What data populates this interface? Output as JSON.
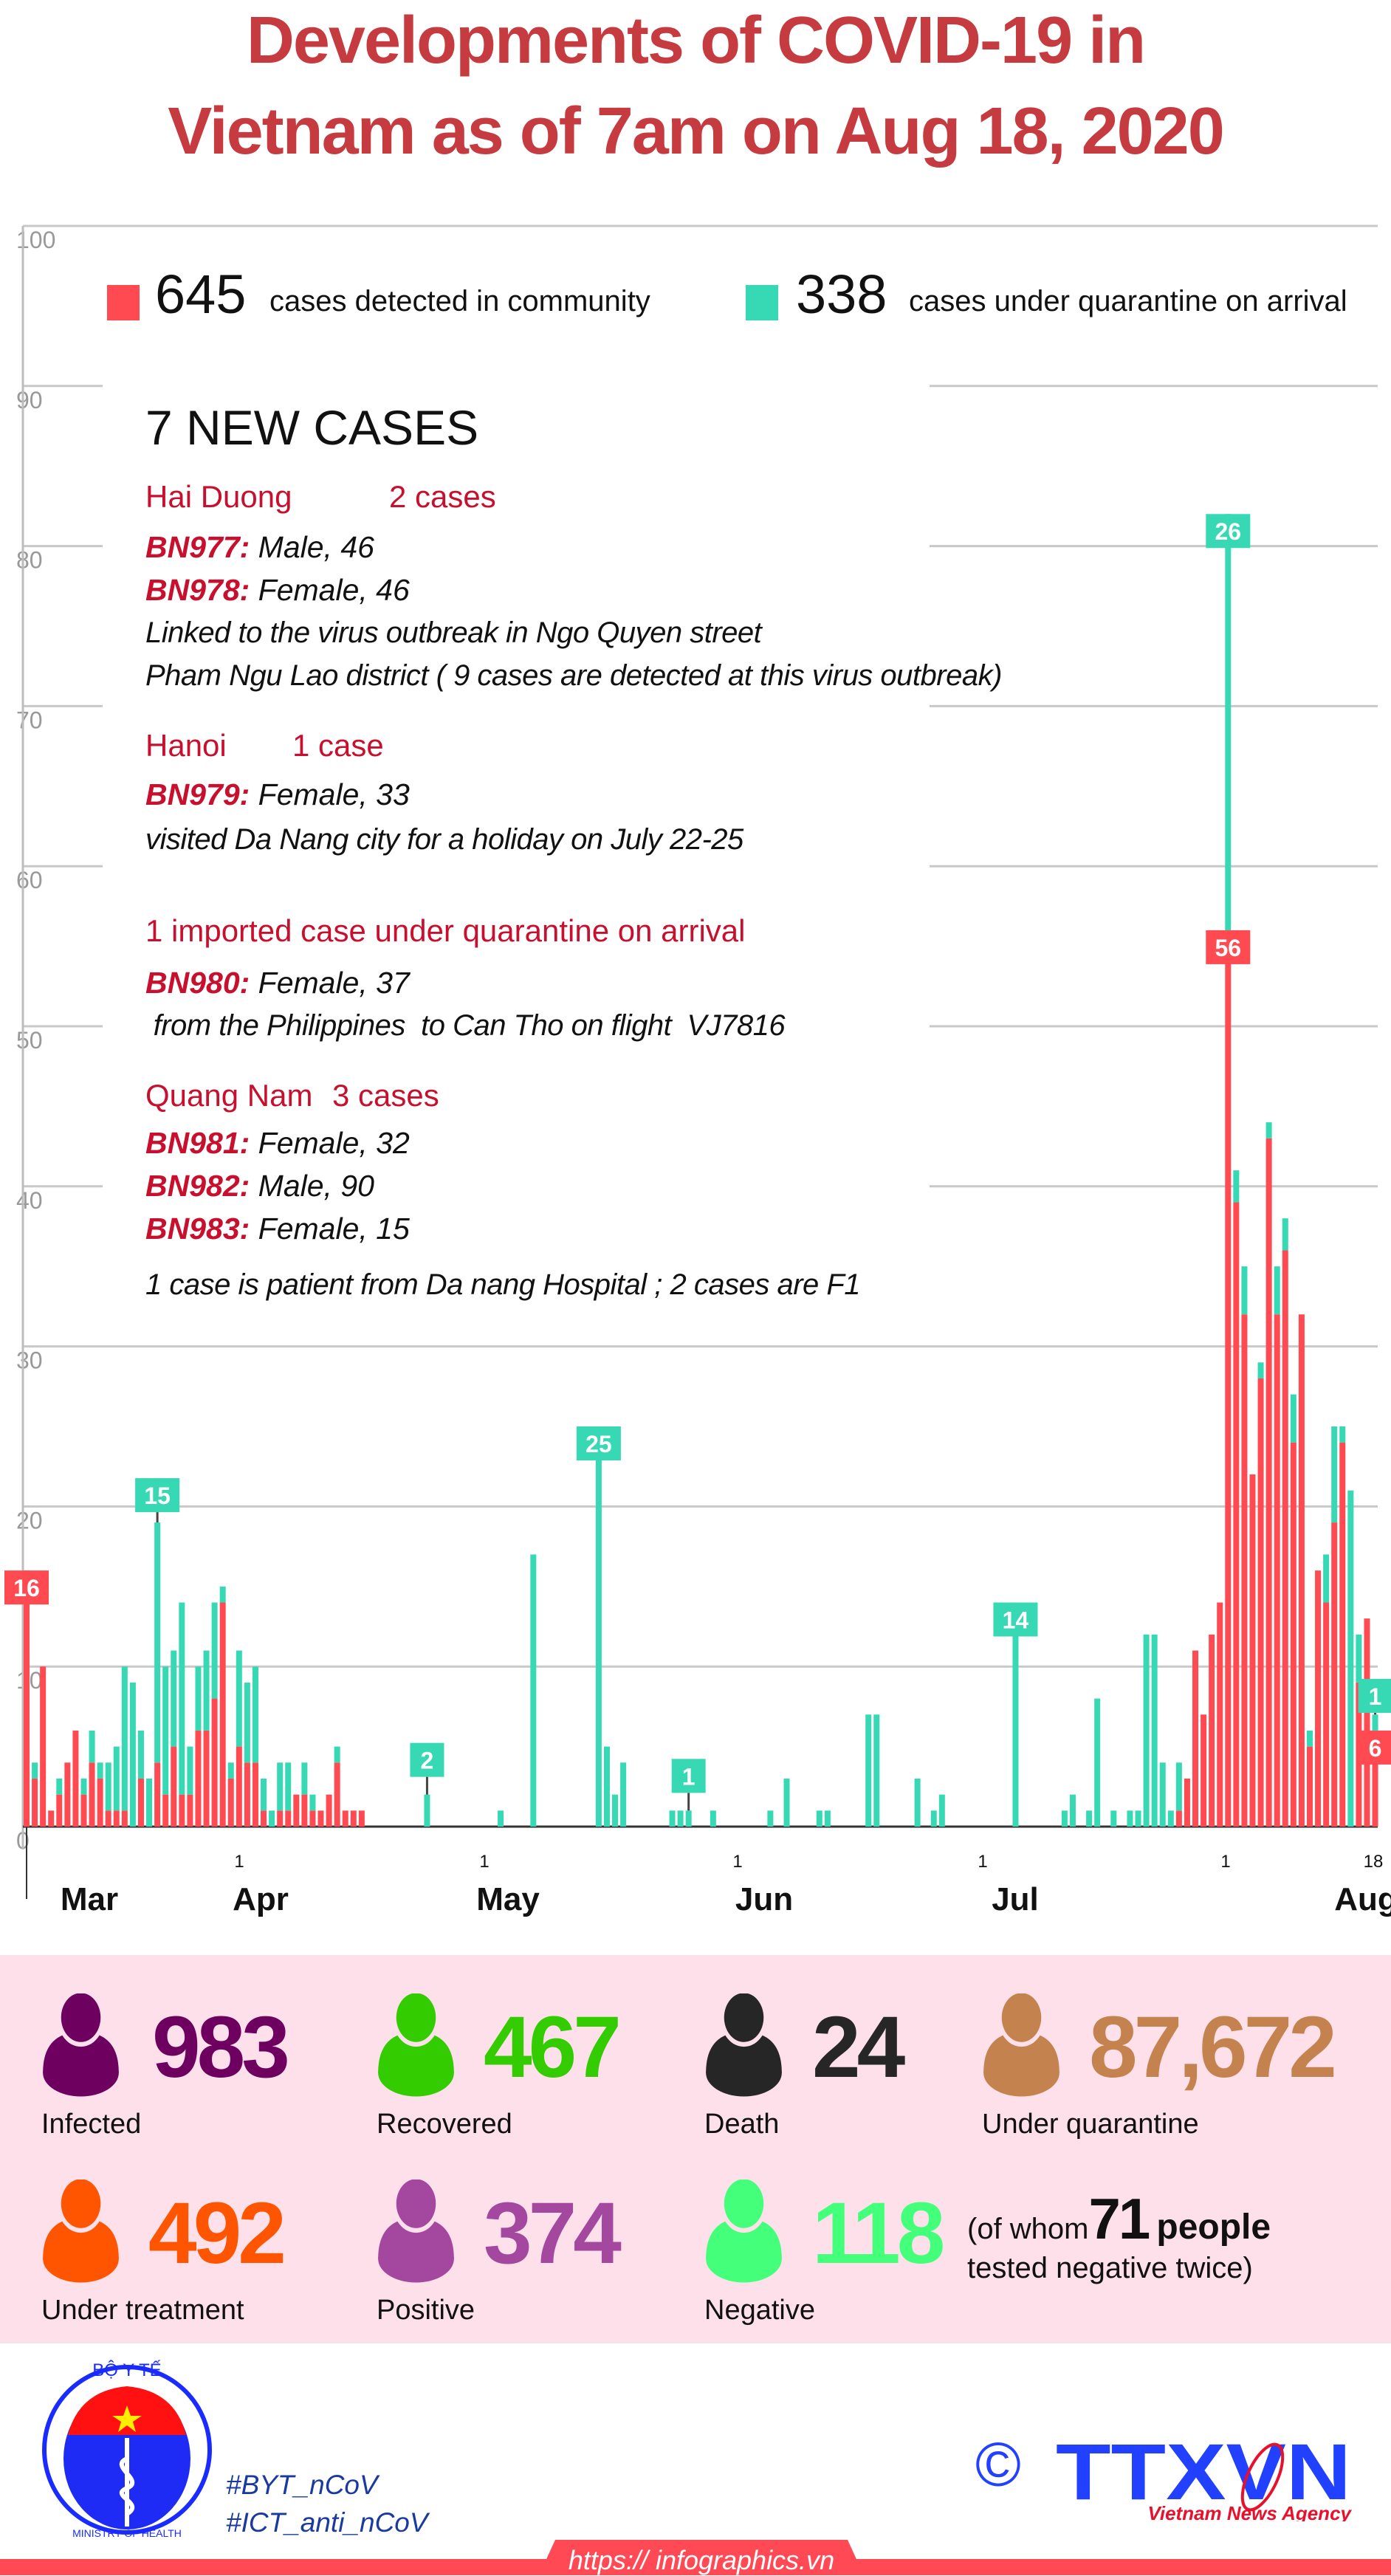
{
  "title": {
    "line1": "Developments of COVID-19 in",
    "line2": "Vietnam as of 7am on Aug 18, 2020"
  },
  "legend": {
    "community": {
      "count": "645",
      "label": "cases detected in community",
      "color": "#ff4a52"
    },
    "quarantine": {
      "count": "338",
      "label": "cases under quarantine on arrival",
      "color": "#36d9b4"
    }
  },
  "new_cases": {
    "heading": "7 NEW CASES",
    "groups": [
      {
        "region": "Hai Duong",
        "count": "2 cases",
        "patients": [
          {
            "id": "BN977:",
            "desc": " Male, 46"
          },
          {
            "id": "BN978:",
            "desc": " Female, 46"
          }
        ],
        "notes": [
          "Linked to the virus outbreak in Ngo Quyen street",
          "Pham Ngu Lao district ( 9 cases are detected at this virus outbreak)"
        ]
      },
      {
        "region": "Hanoi",
        "count": "1 case",
        "patients": [
          {
            "id": "BN979:",
            "desc": " Female, 33"
          }
        ],
        "notes": [
          "visited Da Nang city for a holiday on July 22-25"
        ]
      },
      {
        "region": "1 imported case under quarantine on arrival",
        "count": "",
        "patients": [
          {
            "id": "BN980:",
            "desc": " Female, 37"
          }
        ],
        "notes": [
          " from the Philippines  to Can Tho on flight  VJ7816"
        ]
      },
      {
        "region": "Quang Nam",
        "count": "3 cases",
        "patients": [
          {
            "id": "BN981:",
            "desc": " Female, 32"
          },
          {
            "id": "BN982:",
            "desc": " Male, 90"
          },
          {
            "id": "BN983:",
            "desc": " Female, 15"
          }
        ],
        "notes": [
          "1 case is patient from Da nang Hospital ; 2 cases are F1"
        ]
      }
    ]
  },
  "chart_data": {
    "type": "bar",
    "stacked": true,
    "ylim": [
      0,
      100
    ],
    "yticks": [
      0,
      10,
      20,
      30,
      40,
      50,
      60,
      70,
      80,
      90,
      100
    ],
    "grid": true,
    "x_tick_labels": [
      "1",
      "1",
      "1",
      "1",
      "1",
      "18"
    ],
    "month_labels": [
      "Mar",
      "Apr",
      "May",
      "Jun",
      "Jul",
      "Aug"
    ],
    "series_colors": {
      "community": "#ff4a52",
      "quarantine": "#36d9b4"
    },
    "start_date": "2020-03-06",
    "days": [
      [
        "2020-03-06",
        16,
        0
      ],
      [
        "2020-03-07",
        3,
        1
      ],
      [
        "2020-03-08",
        10,
        0
      ],
      [
        "2020-03-09",
        1,
        0
      ],
      [
        "2020-03-10",
        2,
        1
      ],
      [
        "2020-03-11",
        4,
        0
      ],
      [
        "2020-03-12",
        6,
        0
      ],
      [
        "2020-03-13",
        2,
        1
      ],
      [
        "2020-03-14",
        4,
        2
      ],
      [
        "2020-03-15",
        3,
        1
      ],
      [
        "2020-03-16",
        1,
        3
      ],
      [
        "2020-03-17",
        1,
        4
      ],
      [
        "2020-03-18",
        1,
        9
      ],
      [
        "2020-03-19",
        0,
        9
      ],
      [
        "2020-03-20",
        3,
        3
      ],
      [
        "2020-03-21",
        0,
        3
      ],
      [
        "2020-03-22",
        4,
        15
      ],
      [
        "2020-03-23",
        2,
        8
      ],
      [
        "2020-03-24",
        5,
        6
      ],
      [
        "2020-03-25",
        2,
        12
      ],
      [
        "2020-03-26",
        2,
        3
      ],
      [
        "2020-03-27",
        6,
        4
      ],
      [
        "2020-03-28",
        6,
        5
      ],
      [
        "2020-03-29",
        8,
        6
      ],
      [
        "2020-03-30",
        14,
        1
      ],
      [
        "2020-03-31",
        3,
        1
      ],
      [
        "2020-04-01",
        5,
        6
      ],
      [
        "2020-04-02",
        4,
        5
      ],
      [
        "2020-04-03",
        4,
        6
      ],
      [
        "2020-04-04",
        1,
        2
      ],
      [
        "2020-04-05",
        0,
        1
      ],
      [
        "2020-04-06",
        1,
        3
      ],
      [
        "2020-04-07",
        1,
        3
      ],
      [
        "2020-04-08",
        2,
        0
      ],
      [
        "2020-04-09",
        2,
        2
      ],
      [
        "2020-04-10",
        1,
        1
      ],
      [
        "2020-04-11",
        1,
        0
      ],
      [
        "2020-04-12",
        2,
        0
      ],
      [
        "2020-04-13",
        4,
        1
      ],
      [
        "2020-04-14",
        1,
        0
      ],
      [
        "2020-04-15",
        1,
        0
      ],
      [
        "2020-04-16",
        1,
        0
      ],
      [
        "2020-04-24",
        0,
        2
      ],
      [
        "2020-05-03",
        0,
        1
      ],
      [
        "2020-05-07",
        0,
        17
      ],
      [
        "2020-05-15",
        0,
        25
      ],
      [
        "2020-05-16",
        0,
        5
      ],
      [
        "2020-05-17",
        0,
        2
      ],
      [
        "2020-05-18",
        0,
        4
      ],
      [
        "2020-05-24",
        0,
        1
      ],
      [
        "2020-05-25",
        0,
        1
      ],
      [
        "2020-05-26",
        0,
        1
      ],
      [
        "2020-05-29",
        0,
        1
      ],
      [
        "2020-06-05",
        0,
        1
      ],
      [
        "2020-06-07",
        0,
        3
      ],
      [
        "2020-06-11",
        0,
        1
      ],
      [
        "2020-06-12",
        0,
        1
      ],
      [
        "2020-06-17",
        0,
        7
      ],
      [
        "2020-06-18",
        0,
        7
      ],
      [
        "2020-06-23",
        0,
        3
      ],
      [
        "2020-06-25",
        0,
        1
      ],
      [
        "2020-06-26",
        0,
        2
      ],
      [
        "2020-07-05",
        0,
        14
      ],
      [
        "2020-07-11",
        0,
        1
      ],
      [
        "2020-07-12",
        0,
        2
      ],
      [
        "2020-07-14",
        0,
        1
      ],
      [
        "2020-07-15",
        0,
        8
      ],
      [
        "2020-07-17",
        0,
        1
      ],
      [
        "2020-07-19",
        0,
        1
      ],
      [
        "2020-07-20",
        0,
        1
      ],
      [
        "2020-07-21",
        0,
        12
      ],
      [
        "2020-07-22",
        0,
        12
      ],
      [
        "2020-07-23",
        0,
        4
      ],
      [
        "2020-07-24",
        0,
        1
      ],
      [
        "2020-07-25",
        1,
        3
      ],
      [
        "2020-07-26",
        3,
        0
      ],
      [
        "2020-07-27",
        11,
        0
      ],
      [
        "2020-07-28",
        7,
        0
      ],
      [
        "2020-07-29",
        12,
        0
      ],
      [
        "2020-07-30",
        14,
        0
      ],
      [
        "2020-07-31",
        56,
        26
      ],
      [
        "2020-08-01",
        39,
        2
      ],
      [
        "2020-08-02",
        32,
        3
      ],
      [
        "2020-08-03",
        22,
        0
      ],
      [
        "2020-08-04",
        28,
        1
      ],
      [
        "2020-08-05",
        43,
        1
      ],
      [
        "2020-08-06",
        32,
        3
      ],
      [
        "2020-08-07",
        36,
        2
      ],
      [
        "2020-08-08",
        24,
        3
      ],
      [
        "2020-08-09",
        32,
        0
      ],
      [
        "2020-08-10",
        5,
        1
      ],
      [
        "2020-08-11",
        16,
        0
      ],
      [
        "2020-08-12",
        14,
        3
      ],
      [
        "2020-08-13",
        19,
        6
      ],
      [
        "2020-08-14",
        24,
        1
      ],
      [
        "2020-08-15",
        0,
        21
      ],
      [
        "2020-08-16",
        9,
        3
      ],
      [
        "2020-08-17",
        13,
        0
      ],
      [
        "2020-08-18",
        6,
        1
      ]
    ],
    "data_labels": [
      {
        "date": "2020-03-06",
        "series": "community",
        "text": "16"
      },
      {
        "date": "2020-03-22",
        "series": "quarantine",
        "text": "15"
      },
      {
        "date": "2020-04-24",
        "series": "quarantine",
        "text": "2"
      },
      {
        "date": "2020-05-15",
        "series": "quarantine",
        "text": "25"
      },
      {
        "date": "2020-05-26",
        "series": "quarantine",
        "text": "1"
      },
      {
        "date": "2020-07-05",
        "series": "quarantine",
        "text": "14"
      },
      {
        "date": "2020-07-31",
        "series": "quarantine",
        "text": "26"
      },
      {
        "date": "2020-07-31",
        "series": "community",
        "text": "56"
      },
      {
        "date": "2020-08-18",
        "series": "quarantine",
        "text": "1"
      },
      {
        "date": "2020-08-18",
        "series": "community",
        "text": "6"
      }
    ]
  },
  "stats": [
    {
      "value": "983",
      "label": "Infected",
      "color": "#6e0060",
      "icon": "person-icon"
    },
    {
      "value": "467",
      "label": "Recovered",
      "color": "#33cc00",
      "icon": "person-icon"
    },
    {
      "value": "24",
      "label": "Death",
      "color": "#262626",
      "icon": "person-icon"
    },
    {
      "value": "87,672",
      "label": "Under quarantine",
      "color": "#c4834e",
      "icon": "person-icon"
    },
    {
      "value": "492",
      "label": "Under treatment",
      "color": "#ff5500",
      "icon": "person-icon"
    },
    {
      "value": "374",
      "label": "Positive",
      "color": "#a4479f",
      "icon": "person-icon"
    },
    {
      "value": "118",
      "label": "Negative",
      "color": "#44ff7a",
      "icon": "person-icon"
    }
  ],
  "negative_note": {
    "prefix": "(of whom",
    "count": "71",
    "suffix": "people",
    "line2": "tested negative twice)"
  },
  "footer": {
    "hashtags": [
      "#BYT_nCoV",
      "#ICT_anti_nCoV"
    ],
    "moh_logo": {
      "top_text": "BỘ Y TẾ",
      "bottom_text": "MINISTRY OF HEALTH"
    },
    "agency_logo": {
      "copyright": "©",
      "name": "TTXVN",
      "tagline": "Vietnam News Agency"
    },
    "url": "https:// infographics.vn"
  }
}
